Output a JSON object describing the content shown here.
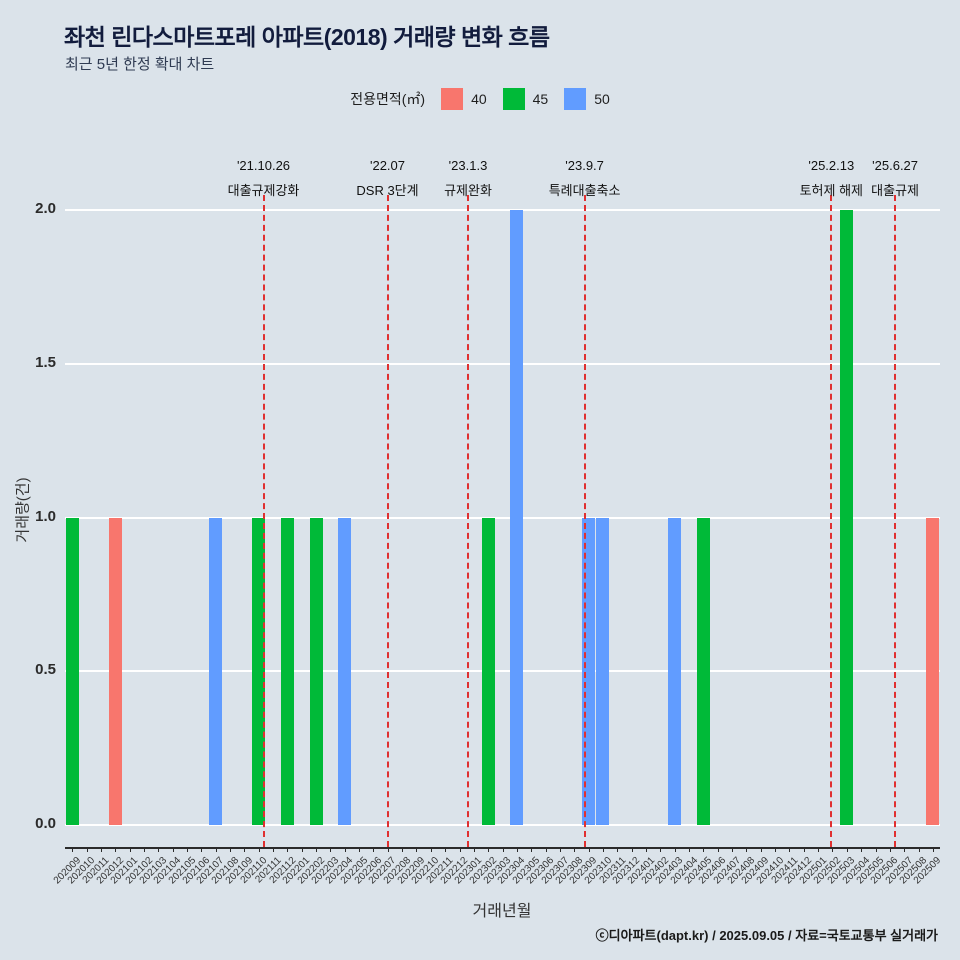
{
  "header": {
    "title": "좌천 린다스마트포레 아파트(2018) 거래량 변화 흐름",
    "subtitle": "최근 5년 한정 확대 차트"
  },
  "legend": {
    "label": "전용면적(㎡)",
    "items": [
      {
        "label": "40",
        "color": "#F8766D"
      },
      {
        "label": "45",
        "color": "#00BA38"
      },
      {
        "label": "50",
        "color": "#619CFF"
      }
    ]
  },
  "chart_data": {
    "type": "bar",
    "title": "좌천 린다스마트포레 아파트(2018) 거래량 변화 흐름",
    "xlabel": "거래년월",
    "ylabel": "거래량(건)",
    "ylim": [
      0,
      2
    ],
    "yticks": [
      "0.0",
      "0.5",
      "1.0",
      "1.5",
      "2.0"
    ],
    "grid": true,
    "legend_position": "top",
    "event_line_color": "#e03030",
    "categories": [
      "202009",
      "202010",
      "202011",
      "202012",
      "202101",
      "202102",
      "202103",
      "202104",
      "202105",
      "202106",
      "202107",
      "202108",
      "202109",
      "202110",
      "202111",
      "202112",
      "202201",
      "202202",
      "202203",
      "202204",
      "202205",
      "202206",
      "202207",
      "202208",
      "202209",
      "202210",
      "202211",
      "202212",
      "202301",
      "202302",
      "202303",
      "202304",
      "202305",
      "202306",
      "202307",
      "202308",
      "202309",
      "202310",
      "202311",
      "202312",
      "202401",
      "202402",
      "202403",
      "202404",
      "202405",
      "202406",
      "202407",
      "202408",
      "202409",
      "202410",
      "202411",
      "202412",
      "202501",
      "202502",
      "202503",
      "202504",
      "202505",
      "202506",
      "202507",
      "202508",
      "202509"
    ],
    "bars": [
      {
        "month": "202009",
        "area": "45",
        "value": 1
      },
      {
        "month": "202012",
        "area": "40",
        "value": 1
      },
      {
        "month": "202107",
        "area": "50",
        "value": 1
      },
      {
        "month": "202110",
        "area": "45",
        "value": 1
      },
      {
        "month": "202112",
        "area": "45",
        "value": 1
      },
      {
        "month": "202202",
        "area": "45",
        "value": 1
      },
      {
        "month": "202204",
        "area": "50",
        "value": 1
      },
      {
        "month": "202302",
        "area": "45",
        "value": 1
      },
      {
        "month": "202304",
        "area": "50",
        "value": 2
      },
      {
        "month": "202309",
        "area": "50",
        "value": 1
      },
      {
        "month": "202310",
        "area": "50",
        "value": 1
      },
      {
        "month": "202403",
        "area": "50",
        "value": 1
      },
      {
        "month": "202405",
        "area": "45",
        "value": 1
      },
      {
        "month": "202503",
        "area": "45",
        "value": 2
      },
      {
        "month": "202509",
        "area": "40",
        "value": 1
      }
    ],
    "events": [
      {
        "date_label": "'21.10.26",
        "label": "대출규제강화",
        "month": "202110",
        "day": 26
      },
      {
        "date_label": "'22.07",
        "label": "DSR 3단계",
        "month": "202207",
        "day": 15
      },
      {
        "date_label": "'23.1.3",
        "label": "규제완화",
        "month": "202301",
        "day": 3
      },
      {
        "date_label": "'23.9.7",
        "label": "특례대출축소",
        "month": "202309",
        "day": 7
      },
      {
        "date_label": "'25.2.13",
        "label": "토허제 해제",
        "month": "202502",
        "day": 13
      },
      {
        "date_label": "'25.6.27",
        "label": "대출규제",
        "month": "202506",
        "day": 27
      }
    ]
  },
  "footer": {
    "credit": "ⓒ디아파트(dapt.kr) / 2025.09.05 / 자료=국토교통부 실거래가"
  }
}
